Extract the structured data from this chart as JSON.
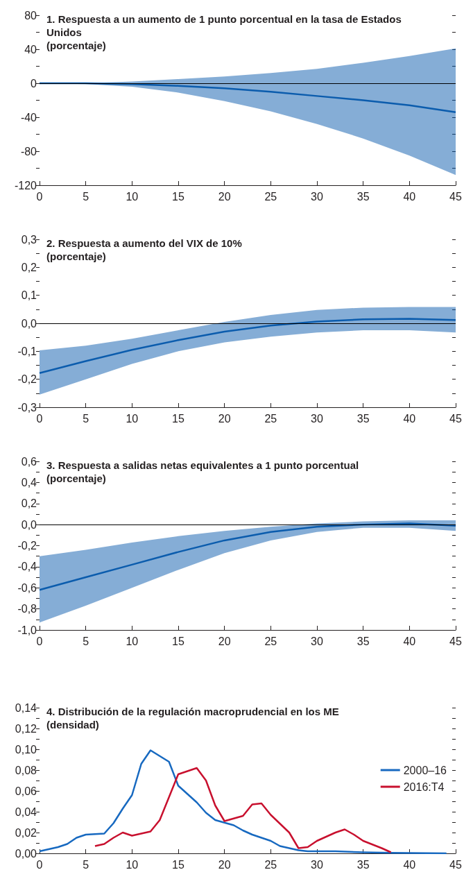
{
  "chart_data": [
    {
      "type": "line",
      "title": "1. Respuesta a un aumento de 1 punto porcentual en la tasa de Estados Unidos",
      "subtitle": "(porcentaje)",
      "x": [
        0,
        5,
        10,
        15,
        20,
        25,
        30,
        35,
        40,
        45
      ],
      "series": [
        {
          "color": "#0b5cad",
          "values": [
            0,
            0,
            -1,
            -3,
            -6,
            -10,
            -15,
            -20,
            -26,
            -34
          ],
          "lower": [
            0,
            -1,
            -4,
            -11,
            -21,
            -33,
            -48,
            -65,
            -85,
            -108
          ],
          "upper": [
            0,
            0,
            2,
            5,
            8,
            12,
            17,
            24,
            32,
            41
          ]
        }
      ],
      "xlim": [
        0,
        45
      ],
      "xticks": [
        0,
        5,
        10,
        15,
        20,
        25,
        30,
        35,
        40,
        45
      ],
      "ylim": [
        -120,
        80
      ],
      "yticks": [
        -120,
        {
          "value": -100,
          "label": null
        },
        -80,
        {
          "value": -60,
          "label": null
        },
        -40,
        {
          "value": -20,
          "label": null
        },
        0,
        {
          "value": 20,
          "label": null
        },
        40,
        {
          "value": 60,
          "label": null
        },
        80
      ],
      "ref_lines": [
        {
          "axis": "y",
          "value": 0,
          "color": "#000000"
        }
      ],
      "marker": "none"
    },
    {
      "type": "line",
      "title": "2. Respuesta a aumento del VIX de 10%",
      "subtitle": "(porcentaje)",
      "x": [
        0,
        5,
        10,
        15,
        20,
        25,
        30,
        35,
        40,
        45
      ],
      "series": [
        {
          "color": "#0b5cad",
          "values": [
            -0.178,
            -0.135,
            -0.095,
            -0.06,
            -0.03,
            -0.008,
            0.006,
            0.014,
            0.016,
            0.012
          ],
          "lower": [
            -0.255,
            -0.2,
            -0.145,
            -0.1,
            -0.068,
            -0.048,
            -0.033,
            -0.025,
            -0.025,
            -0.033
          ],
          "upper": [
            -0.097,
            -0.08,
            -0.055,
            -0.025,
            0.005,
            0.03,
            0.048,
            0.056,
            0.058,
            0.058
          ]
        }
      ],
      "xlim": [
        0,
        45
      ],
      "xticks": [
        0,
        5,
        10,
        15,
        20,
        25,
        30,
        35,
        40,
        45
      ],
      "ylim": [
        -0.3,
        0.3
      ],
      "yticks": [
        {
          "value": -0.3,
          "label": "-0,3"
        },
        {
          "value": -0.25,
          "label": null
        },
        {
          "value": -0.2,
          "label": "-0,2"
        },
        {
          "value": -0.15,
          "label": null
        },
        {
          "value": -0.1,
          "label": "-0,1"
        },
        {
          "value": -0.05,
          "label": null
        },
        {
          "value": 0,
          "label": "0,0"
        },
        {
          "value": 0.05,
          "label": null
        },
        {
          "value": 0.1,
          "label": "0,1"
        },
        {
          "value": 0.15,
          "label": null
        },
        {
          "value": 0.2,
          "label": "0,2"
        },
        {
          "value": 0.25,
          "label": null
        },
        {
          "value": 0.3,
          "label": "0,3"
        }
      ],
      "ref_lines": [
        {
          "axis": "y",
          "value": 0,
          "color": "#000000"
        }
      ],
      "marker": "none"
    },
    {
      "type": "line",
      "title": "3. Respuesta a salidas netas equivalentes a 1 punto porcentual",
      "subtitle": "(porcentaje)",
      "x": [
        0,
        5,
        10,
        15,
        20,
        25,
        30,
        35,
        40,
        45
      ],
      "series": [
        {
          "color": "#0b5cad",
          "values": [
            -0.62,
            -0.5,
            -0.38,
            -0.26,
            -0.15,
            -0.07,
            -0.02,
            0.0,
            0.01,
            -0.01
          ],
          "lower": [
            -0.93,
            -0.77,
            -0.6,
            -0.43,
            -0.27,
            -0.15,
            -0.07,
            -0.03,
            -0.03,
            -0.06
          ],
          "upper": [
            -0.3,
            -0.24,
            -0.17,
            -0.11,
            -0.06,
            -0.02,
            0.01,
            0.03,
            0.04,
            0.04
          ]
        }
      ],
      "xlim": [
        0,
        45
      ],
      "xticks": [
        0,
        5,
        10,
        15,
        20,
        25,
        30,
        35,
        40,
        45
      ],
      "ylim": [
        -1.0,
        0.6
      ],
      "yticks": [
        {
          "value": -1.0,
          "label": "-1,0"
        },
        {
          "value": -0.9,
          "label": null
        },
        {
          "value": -0.8,
          "label": "-0,8"
        },
        {
          "value": -0.7,
          "label": null
        },
        {
          "value": -0.6,
          "label": "-0,6"
        },
        {
          "value": -0.5,
          "label": null
        },
        {
          "value": -0.4,
          "label": "-0,4"
        },
        {
          "value": -0.3,
          "label": null
        },
        {
          "value": -0.2,
          "label": "-0,2"
        },
        {
          "value": -0.1,
          "label": null
        },
        {
          "value": 0,
          "label": "0,0"
        },
        {
          "value": 0.1,
          "label": null
        },
        {
          "value": 0.2,
          "label": "0,2"
        },
        {
          "value": 0.3,
          "label": null
        },
        {
          "value": 0.4,
          "label": "0,4"
        },
        {
          "value": 0.5,
          "label": null
        },
        {
          "value": 0.6,
          "label": "0,6"
        }
      ],
      "ref_lines": [
        {
          "axis": "y",
          "value": 0,
          "color": "#000000"
        }
      ],
      "marker": "none"
    },
    {
      "type": "line",
      "title": "4. Distribución de la regulación macroprudencial en los ME",
      "subtitle": "(densidad)",
      "series": [
        {
          "name": "2000–16",
          "color": "#1769c0",
          "x": [
            0,
            1,
            2,
            3,
            4,
            5,
            7,
            8,
            9,
            10,
            11,
            12,
            14,
            15,
            17,
            18,
            19,
            21,
            22,
            23,
            25,
            26,
            28,
            29,
            32,
            35,
            38,
            44
          ],
          "values": [
            0.002,
            0.004,
            0.006,
            0.009,
            0.015,
            0.018,
            0.019,
            0.029,
            0.043,
            0.056,
            0.086,
            0.099,
            0.088,
            0.065,
            0.049,
            0.039,
            0.032,
            0.027,
            0.022,
            0.018,
            0.012,
            0.007,
            0.003,
            0.002,
            0.002,
            0.001,
            0.0005,
            0
          ]
        },
        {
          "name": "2016:T4",
          "color": "#c8102e",
          "x": [
            6,
            7,
            8,
            9,
            10,
            12,
            13,
            14,
            15,
            17,
            18,
            19,
            20,
            22,
            23,
            24,
            25,
            27,
            28,
            29,
            30,
            32,
            33,
            34,
            35,
            37,
            38
          ],
          "values": [
            0.007,
            0.009,
            0.015,
            0.02,
            0.017,
            0.021,
            0.032,
            0.054,
            0.076,
            0.082,
            0.07,
            0.046,
            0.031,
            0.036,
            0.047,
            0.048,
            0.037,
            0.02,
            0.005,
            0.006,
            0.012,
            0.02,
            0.023,
            0.018,
            0.012,
            0.005,
            0.001
          ]
        }
      ],
      "xlim": [
        0,
        45
      ],
      "xticks": [
        0,
        5,
        10,
        15,
        20,
        25,
        30,
        35,
        40,
        45
      ],
      "ylim": [
        0,
        0.14
      ],
      "yticks": [
        {
          "value": 0,
          "label": "0,00"
        },
        {
          "value": 0.01,
          "label": null
        },
        {
          "value": 0.02,
          "label": "0,02"
        },
        {
          "value": 0.03,
          "label": null
        },
        {
          "value": 0.04,
          "label": "0,04"
        },
        {
          "value": 0.05,
          "label": null
        },
        {
          "value": 0.06,
          "label": "0,06"
        },
        {
          "value": 0.07,
          "label": null
        },
        {
          "value": 0.08,
          "label": "0,08"
        },
        {
          "value": 0.09,
          "label": null
        },
        {
          "value": 0.1,
          "label": "0,10"
        },
        {
          "value": 0.11,
          "label": null
        },
        {
          "value": 0.12,
          "label": "0,12"
        },
        {
          "value": 0.13,
          "label": null
        },
        {
          "value": 0.14,
          "label": "0,14"
        }
      ],
      "legend": "right",
      "marker": "none"
    }
  ]
}
